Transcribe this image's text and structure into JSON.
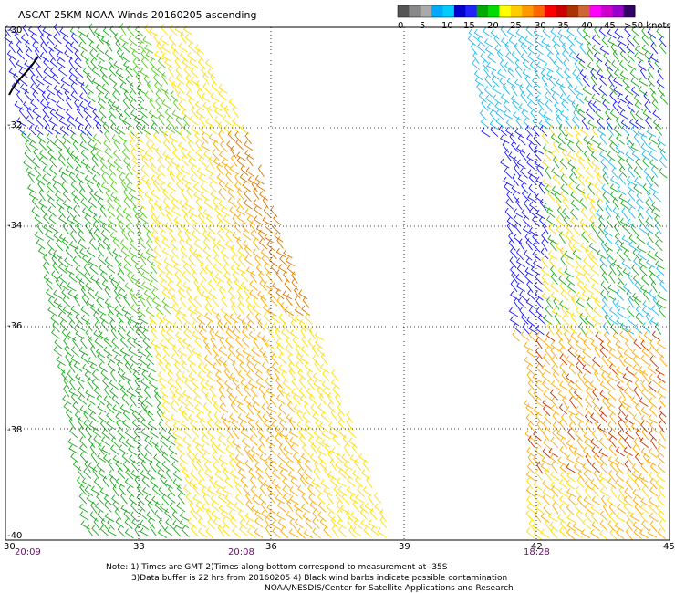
{
  "title": "ASCAT 25KM NOAA Winds 20160205 ascending",
  "colorbar": {
    "colors": [
      "#555555",
      "#888888",
      "#aaaaaa",
      "#00aaff",
      "#00ccff",
      "#0000cc",
      "#2222ff",
      "#00aa00",
      "#00dd00",
      "#ffff00",
      "#ffcc00",
      "#ff9900",
      "#ff6600",
      "#ff0000",
      "#cc0000",
      "#aa3300",
      "#cc6633",
      "#ff00ff",
      "#cc00cc",
      "#9900cc",
      "#330066"
    ],
    "labels": [
      "0",
      "5",
      "10",
      "15",
      "20",
      "25",
      "30",
      "35",
      "40",
      "45",
      ">50 knots"
    ]
  },
  "lat_labels": [
    "-30",
    "-32",
    "-34",
    "-36",
    "-38",
    "-40"
  ],
  "lon_labels": [
    "30",
    "33",
    "36",
    "39",
    "42",
    "45"
  ],
  "times": [
    "20:09",
    "20:08",
    "18:28"
  ],
  "notes": {
    "line1": "Note: 1) Times are GMT 2)Times along bottom correspond to measurement at -35S",
    "line2": "3)Data buffer is 22 hrs from 20160205 4) Black wind barbs indicate possible contamination",
    "line3": "NOAA/NESDIS/Center for Satellite Applications and Research"
  },
  "swaths": [
    {
      "name": "west-swath",
      "colors": {
        "blue": "#1a1aff",
        "green": "#22aa22",
        "lime": "#55cc22",
        "yellow": "#ffdd00",
        "orange": "#ffaa00",
        "darkorange": "#dd7700"
      }
    },
    {
      "name": "east-swath",
      "colors": {
        "cyan": "#22bbee",
        "blue": "#1a1aff",
        "green": "#22aa22",
        "yellow": "#ffdd00",
        "orange": "#ffaa00",
        "red": "#cc3300"
      }
    }
  ]
}
